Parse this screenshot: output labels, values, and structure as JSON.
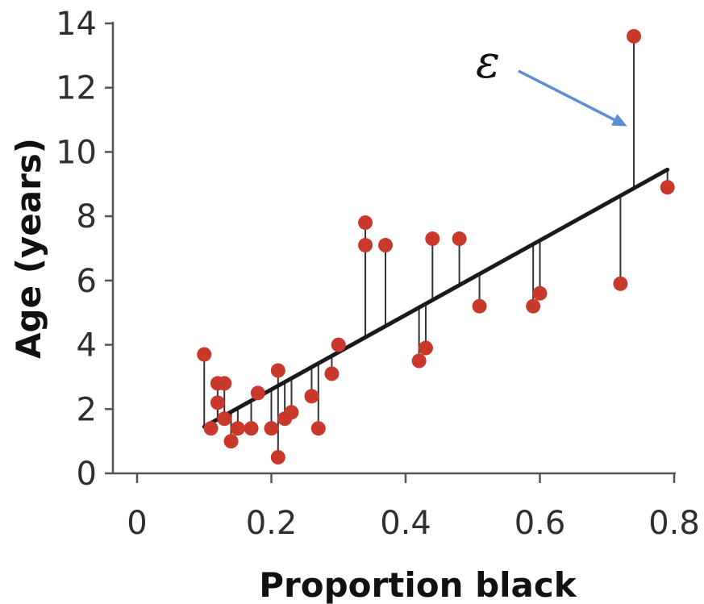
{
  "chart_data": {
    "type": "scatter",
    "title": "",
    "xlabel": "Proportion black",
    "ylabel": "Age (years)",
    "xlim": [
      0,
      0.8
    ],
    "ylim": [
      0,
      14
    ],
    "x_ticks": [
      0,
      0.2,
      0.4,
      0.6,
      0.8
    ],
    "x_tick_labels": [
      "0",
      "0.2",
      "0.4",
      "0.6",
      "0.8"
    ],
    "y_ticks": [
      0,
      2,
      4,
      6,
      8,
      10,
      12,
      14
    ],
    "y_tick_labels": [
      "0",
      "2",
      "4",
      "6",
      "8",
      "10",
      "12",
      "14"
    ],
    "grid": false,
    "points": [
      {
        "x": 0.1,
        "y": 3.7
      },
      {
        "x": 0.11,
        "y": 1.4
      },
      {
        "x": 0.12,
        "y": 2.8
      },
      {
        "x": 0.12,
        "y": 2.2
      },
      {
        "x": 0.13,
        "y": 2.8
      },
      {
        "x": 0.13,
        "y": 1.7
      },
      {
        "x": 0.14,
        "y": 1.0
      },
      {
        "x": 0.15,
        "y": 1.4
      },
      {
        "x": 0.17,
        "y": 1.4
      },
      {
        "x": 0.18,
        "y": 2.5
      },
      {
        "x": 0.2,
        "y": 1.4
      },
      {
        "x": 0.21,
        "y": 3.2
      },
      {
        "x": 0.21,
        "y": 0.5
      },
      {
        "x": 0.22,
        "y": 1.7
      },
      {
        "x": 0.23,
        "y": 1.9
      },
      {
        "x": 0.26,
        "y": 2.4
      },
      {
        "x": 0.27,
        "y": 1.4
      },
      {
        "x": 0.29,
        "y": 3.1
      },
      {
        "x": 0.3,
        "y": 4.0
      },
      {
        "x": 0.34,
        "y": 7.8
      },
      {
        "x": 0.34,
        "y": 7.1
      },
      {
        "x": 0.37,
        "y": 7.1
      },
      {
        "x": 0.42,
        "y": 3.5
      },
      {
        "x": 0.43,
        "y": 3.9
      },
      {
        "x": 0.44,
        "y": 7.3
      },
      {
        "x": 0.48,
        "y": 7.3
      },
      {
        "x": 0.51,
        "y": 5.2
      },
      {
        "x": 0.59,
        "y": 5.2
      },
      {
        "x": 0.6,
        "y": 5.6
      },
      {
        "x": 0.72,
        "y": 5.9
      },
      {
        "x": 0.74,
        "y": 13.6
      },
      {
        "x": 0.79,
        "y": 8.9
      }
    ],
    "regression_line": {
      "x": [
        0.1,
        0.79
      ],
      "y": [
        1.45,
        9.45
      ]
    },
    "point_color": "#c8392b",
    "line_color": "#1a1a1a",
    "residual_color": "#333333",
    "annotation": {
      "text": "ε",
      "target": {
        "x": 0.73,
        "y": 10.8
      },
      "arrow_color": "#5b8ed0"
    }
  }
}
